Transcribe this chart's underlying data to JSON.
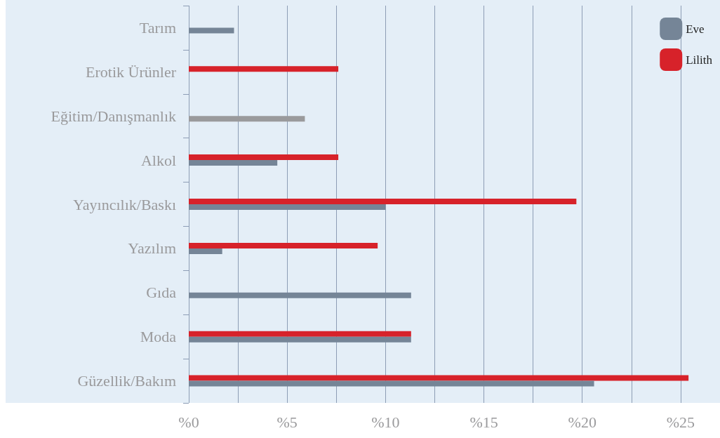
{
  "chart_data": {
    "type": "bar",
    "orientation": "horizontal",
    "categories": [
      "Tarım",
      "Erotik Ürünler",
      "Eğitim/Danışmanlık",
      "Alkol",
      "Yayıncılık/Baskı",
      "Yazılım",
      "Gıda",
      "Moda",
      "Güzellik/Bakım"
    ],
    "series": [
      {
        "name": "Lilith",
        "color": "#d7222a",
        "values": [
          null,
          7.6,
          null,
          7.6,
          19.7,
          9.6,
          null,
          11.3,
          25.4
        ]
      },
      {
        "name": "Eve",
        "color": "#758597",
        "colors": [
          "#758597",
          "#758597",
          "#9a9a9c",
          "#758597",
          "#758597",
          "#758597",
          "#758597",
          "#758597",
          "#758597"
        ],
        "values": [
          2.3,
          null,
          5.9,
          4.5,
          10,
          1.7,
          11.3,
          11.3,
          20.6
        ]
      }
    ],
    "xlim": [
      0,
      27
    ],
    "xticks": [
      {
        "value": 0,
        "label": "%0"
      },
      {
        "value": 2.5,
        "label": null
      },
      {
        "value": 5,
        "label": "%5"
      },
      {
        "value": 7.5,
        "label": null
      },
      {
        "value": 10,
        "label": "%10"
      },
      {
        "value": 12.5,
        "label": null
      },
      {
        "value": 15,
        "label": "%15"
      },
      {
        "value": 17.5,
        "label": null
      },
      {
        "value": 20,
        "label": "%20"
      },
      {
        "value": 22.5,
        "label": null
      },
      {
        "value": 25,
        "label": "%25"
      }
    ],
    "grid": "x",
    "legend": "top right"
  }
}
